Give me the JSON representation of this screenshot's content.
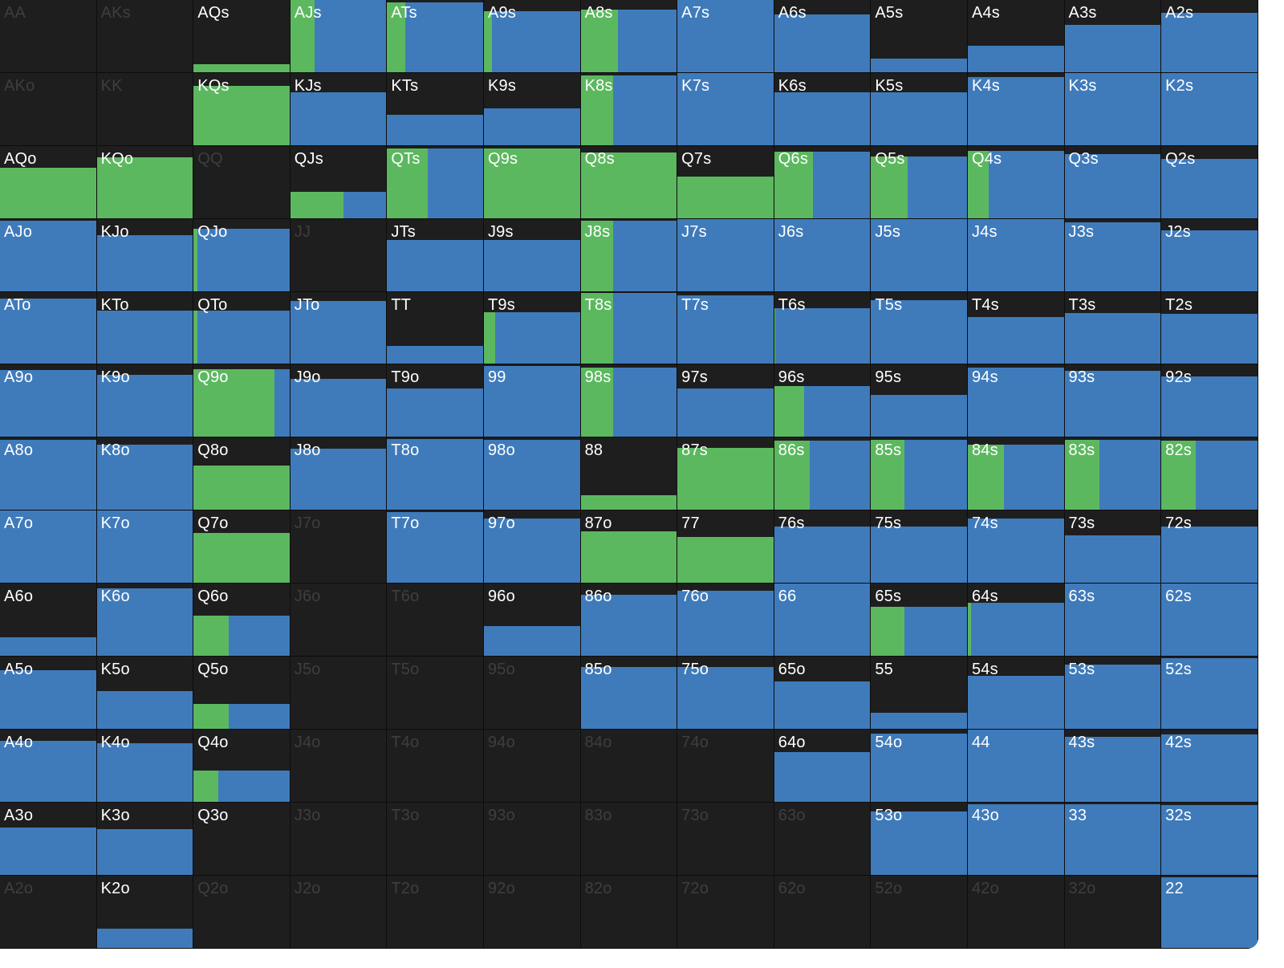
{
  "legend": {
    "colors": {
      "raise": "#5cb85f",
      "call": "#3f7bbb",
      "fold": "#1e1e1e"
    }
  },
  "grid": [
    [
      {
        "hand": "AA",
        "total": 0,
        "raise": 0,
        "dim": true
      },
      {
        "hand": "AKs",
        "total": 0,
        "raise": 0,
        "dim": true
      },
      {
        "hand": "AQs",
        "total": 0.12,
        "raise": 1
      },
      {
        "hand": "AJs",
        "total": 1,
        "raise": 0.25
      },
      {
        "hand": "ATs",
        "total": 0.97,
        "raise": 0.19
      },
      {
        "hand": "A9s",
        "total": 0.85,
        "raise": 0.08
      },
      {
        "hand": "A8s",
        "total": 0.87,
        "raise": 0.39
      },
      {
        "hand": "A7s",
        "total": 1,
        "raise": 0
      },
      {
        "hand": "A6s",
        "total": 0.8,
        "raise": 0
      },
      {
        "hand": "A5s",
        "total": 0.2,
        "raise": 0
      },
      {
        "hand": "A4s",
        "total": 0.37,
        "raise": 0
      },
      {
        "hand": "A3s",
        "total": 0.66,
        "raise": 0
      },
      {
        "hand": "A2s",
        "total": 0.82,
        "raise": 0
      }
    ],
    [
      {
        "hand": "AKo",
        "total": 0,
        "raise": 0,
        "dim": true
      },
      {
        "hand": "KK",
        "total": 0,
        "raise": 0,
        "dim": true
      },
      {
        "hand": "KQs",
        "total": 0.82,
        "raise": 1
      },
      {
        "hand": "KJs",
        "total": 0.74,
        "raise": 0
      },
      {
        "hand": "KTs",
        "total": 0.43,
        "raise": 0
      },
      {
        "hand": "K9s",
        "total": 0.52,
        "raise": 0
      },
      {
        "hand": "K8s",
        "total": 0.97,
        "raise": 0.34
      },
      {
        "hand": "K7s",
        "total": 1,
        "raise": 0
      },
      {
        "hand": "K6s",
        "total": 0.74,
        "raise": 0
      },
      {
        "hand": "K5s",
        "total": 0.74,
        "raise": 0
      },
      {
        "hand": "K4s",
        "total": 0.94,
        "raise": 0
      },
      {
        "hand": "K3s",
        "total": 1,
        "raise": 0
      },
      {
        "hand": "K2s",
        "total": 1,
        "raise": 0
      }
    ],
    [
      {
        "hand": "AQo",
        "total": 0.7,
        "raise": 1
      },
      {
        "hand": "KQo",
        "total": 0.84,
        "raise": 1
      },
      {
        "hand": "QQ",
        "total": 0,
        "raise": 0,
        "dim": true
      },
      {
        "hand": "QJs",
        "total": 0.37,
        "raise": 0.55
      },
      {
        "hand": "QTs",
        "total": 0.97,
        "raise": 0.42
      },
      {
        "hand": "Q9s",
        "total": 0.96,
        "raise": 1
      },
      {
        "hand": "Q8s",
        "total": 0.91,
        "raise": 1
      },
      {
        "hand": "Q7s",
        "total": 0.58,
        "raise": 1
      },
      {
        "hand": "Q6s",
        "total": 0.92,
        "raise": 0.4
      },
      {
        "hand": "Q5s",
        "total": 0.86,
        "raise": 0.38
      },
      {
        "hand": "Q4s",
        "total": 0.93,
        "raise": 0.22
      },
      {
        "hand": "Q3s",
        "total": 0.89,
        "raise": 0
      },
      {
        "hand": "Q2s",
        "total": 0.82,
        "raise": 0
      }
    ],
    [
      {
        "hand": "AJo",
        "total": 0.97,
        "raise": 0
      },
      {
        "hand": "KJo",
        "total": 0.78,
        "raise": 0
      },
      {
        "hand": "QJo",
        "total": 0.86,
        "raise": 0.04
      },
      {
        "hand": "JJ",
        "total": 0,
        "raise": 0,
        "dim": true
      },
      {
        "hand": "JTs",
        "total": 0.71,
        "raise": 0
      },
      {
        "hand": "J9s",
        "total": 0.71,
        "raise": 0
      },
      {
        "hand": "J8s",
        "total": 0.98,
        "raise": 0.34
      },
      {
        "hand": "J7s",
        "total": 1,
        "raise": 0
      },
      {
        "hand": "J6s",
        "total": 1,
        "raise": 0
      },
      {
        "hand": "J5s",
        "total": 1,
        "raise": 0
      },
      {
        "hand": "J4s",
        "total": 1,
        "raise": 0
      },
      {
        "hand": "J3s",
        "total": 0.95,
        "raise": 0
      },
      {
        "hand": "J2s",
        "total": 0.84,
        "raise": 0
      }
    ],
    [
      {
        "hand": "ATo",
        "total": 0.91,
        "raise": 0
      },
      {
        "hand": "KTo",
        "total": 0.74,
        "raise": 0
      },
      {
        "hand": "QTo",
        "total": 0.74,
        "raise": 0.04
      },
      {
        "hand": "JTo",
        "total": 0.87,
        "raise": 0
      },
      {
        "hand": "TT",
        "total": 0.26,
        "raise": 0
      },
      {
        "hand": "T9s",
        "total": 0.72,
        "raise": 0.12
      },
      {
        "hand": "T8s",
        "total": 0.98,
        "raise": 0.34
      },
      {
        "hand": "T7s",
        "total": 0.95,
        "raise": 0
      },
      {
        "hand": "T6s",
        "total": 0.78,
        "raise": 0.01
      },
      {
        "hand": "T5s",
        "total": 0.89,
        "raise": 0
      },
      {
        "hand": "T4s",
        "total": 0.65,
        "raise": 0
      },
      {
        "hand": "T3s",
        "total": 0.71,
        "raise": 0
      },
      {
        "hand": "T2s",
        "total": 0.7,
        "raise": 0
      }
    ],
    [
      {
        "hand": "A9o",
        "total": 0.93,
        "raise": 0
      },
      {
        "hand": "K9o",
        "total": 0.86,
        "raise": 0
      },
      {
        "hand": "Q9o",
        "total": 0.94,
        "raise": 0.84
      },
      {
        "hand": "J9o",
        "total": 0.81,
        "raise": 0
      },
      {
        "hand": "T9o",
        "total": 0.68,
        "raise": 0
      },
      {
        "hand": "99",
        "total": 0.98,
        "raise": 0
      },
      {
        "hand": "98s",
        "total": 0.96,
        "raise": 0.34
      },
      {
        "hand": "97s",
        "total": 0.68,
        "raise": 0
      },
      {
        "hand": "96s",
        "total": 0.71,
        "raise": 0.31
      },
      {
        "hand": "95s",
        "total": 0.59,
        "raise": 0
      },
      {
        "hand": "94s",
        "total": 0.96,
        "raise": 0
      },
      {
        "hand": "93s",
        "total": 0.92,
        "raise": 0
      },
      {
        "hand": "92s",
        "total": 0.84,
        "raise": 0
      }
    ],
    [
      {
        "hand": "A8o",
        "total": 0.97,
        "raise": 0
      },
      {
        "hand": "K8o",
        "total": 0.91,
        "raise": 0
      },
      {
        "hand": "Q8o",
        "total": 0.62,
        "raise": 1
      },
      {
        "hand": "J8o",
        "total": 0.85,
        "raise": 0
      },
      {
        "hand": "T8o",
        "total": 0.98,
        "raise": 0
      },
      {
        "hand": "98o",
        "total": 0.97,
        "raise": 0
      },
      {
        "hand": "88",
        "total": 0.21,
        "raise": 1
      },
      {
        "hand": "87s",
        "total": 0.86,
        "raise": 1
      },
      {
        "hand": "86s",
        "total": 0.96,
        "raise": 0.37
      },
      {
        "hand": "85s",
        "total": 0.97,
        "raise": 0.35
      },
      {
        "hand": "84s",
        "total": 0.91,
        "raise": 0.38
      },
      {
        "hand": "83s",
        "total": 0.97,
        "raise": 0.36
      },
      {
        "hand": "82s",
        "total": 0.96,
        "raise": 0.36
      }
    ],
    [
      {
        "hand": "A7o",
        "total": 1,
        "raise": 0
      },
      {
        "hand": "K7o",
        "total": 1,
        "raise": 0
      },
      {
        "hand": "Q7o",
        "total": 0.7,
        "raise": 1
      },
      {
        "hand": "J7o",
        "total": 0,
        "raise": 0,
        "dim": true
      },
      {
        "hand": "T7o",
        "total": 0.98,
        "raise": 0
      },
      {
        "hand": "97o",
        "total": 0.89,
        "raise": 0
      },
      {
        "hand": "87o",
        "total": 0.72,
        "raise": 1
      },
      {
        "hand": "77",
        "total": 0.64,
        "raise": 1
      },
      {
        "hand": "76s",
        "total": 0.78,
        "raise": 0
      },
      {
        "hand": "75s",
        "total": 0.78,
        "raise": 0
      },
      {
        "hand": "74s",
        "total": 0.89,
        "raise": 0
      },
      {
        "hand": "73s",
        "total": 0.66,
        "raise": 0
      },
      {
        "hand": "72s",
        "total": 0.78,
        "raise": 0
      }
    ],
    [
      {
        "hand": "A6o",
        "total": 0.26,
        "raise": 0
      },
      {
        "hand": "K6o",
        "total": 0.94,
        "raise": 0
      },
      {
        "hand": "Q6o",
        "total": 0.56,
        "raise": 0.37
      },
      {
        "hand": "J6o",
        "total": 0,
        "raise": 0,
        "dim": true
      },
      {
        "hand": "T6o",
        "total": 0,
        "raise": 0,
        "dim": true
      },
      {
        "hand": "96o",
        "total": 0.42,
        "raise": 0
      },
      {
        "hand": "86o",
        "total": 0.85,
        "raise": 0
      },
      {
        "hand": "76o",
        "total": 0.9,
        "raise": 0
      },
      {
        "hand": "66",
        "total": 1,
        "raise": 0
      },
      {
        "hand": "65s",
        "total": 0.68,
        "raise": 0.35
      },
      {
        "hand": "64s",
        "total": 0.74,
        "raise": 0.03
      },
      {
        "hand": "63s",
        "total": 1,
        "raise": 0
      },
      {
        "hand": "62s",
        "total": 1,
        "raise": 0
      }
    ],
    [
      {
        "hand": "A5o",
        "total": 0.81,
        "raise": 0
      },
      {
        "hand": "K5o",
        "total": 0.53,
        "raise": 0
      },
      {
        "hand": "Q5o",
        "total": 0.35,
        "raise": 0.37
      },
      {
        "hand": "J5o",
        "total": 0,
        "raise": 0,
        "dim": true
      },
      {
        "hand": "T5o",
        "total": 0,
        "raise": 0,
        "dim": true
      },
      {
        "hand": "95o",
        "total": 0,
        "raise": 0,
        "dim": true
      },
      {
        "hand": "85o",
        "total": 0.86,
        "raise": 0
      },
      {
        "hand": "75o",
        "total": 0.86,
        "raise": 0
      },
      {
        "hand": "65o",
        "total": 0.66,
        "raise": 0
      },
      {
        "hand": "55",
        "total": 0.23,
        "raise": 0
      },
      {
        "hand": "54s",
        "total": 0.74,
        "raise": 0
      },
      {
        "hand": "53s",
        "total": 0.89,
        "raise": 0
      },
      {
        "hand": "52s",
        "total": 0.98,
        "raise": 0
      }
    ],
    [
      {
        "hand": "A4o",
        "total": 0.84,
        "raise": 0
      },
      {
        "hand": "K4o",
        "total": 0.81,
        "raise": 0
      },
      {
        "hand": "Q4o",
        "total": 0.44,
        "raise": 0.26
      },
      {
        "hand": "J4o",
        "total": 0,
        "raise": 0,
        "dim": true
      },
      {
        "hand": "T4o",
        "total": 0,
        "raise": 0,
        "dim": true
      },
      {
        "hand": "94o",
        "total": 0,
        "raise": 0,
        "dim": true
      },
      {
        "hand": "84o",
        "total": 0,
        "raise": 0,
        "dim": true
      },
      {
        "hand": "74o",
        "total": 0,
        "raise": 0,
        "dim": true
      },
      {
        "hand": "64o",
        "total": 0.69,
        "raise": 0
      },
      {
        "hand": "54o",
        "total": 0.94,
        "raise": 0
      },
      {
        "hand": "44",
        "total": 1,
        "raise": 0
      },
      {
        "hand": "43s",
        "total": 0.9,
        "raise": 0
      },
      {
        "hand": "42s",
        "total": 0.93,
        "raise": 0
      }
    ],
    [
      {
        "hand": "A3o",
        "total": 0.66,
        "raise": 0
      },
      {
        "hand": "K3o",
        "total": 0.63,
        "raise": 0
      },
      {
        "hand": "Q3o",
        "total": 0,
        "raise": 0
      },
      {
        "hand": "J3o",
        "total": 0,
        "raise": 0,
        "dim": true
      },
      {
        "hand": "T3o",
        "total": 0,
        "raise": 0,
        "dim": true
      },
      {
        "hand": "93o",
        "total": 0,
        "raise": 0,
        "dim": true
      },
      {
        "hand": "83o",
        "total": 0,
        "raise": 0,
        "dim": true
      },
      {
        "hand": "73o",
        "total": 0,
        "raise": 0,
        "dim": true
      },
      {
        "hand": "63o",
        "total": 0,
        "raise": 0,
        "dim": true
      },
      {
        "hand": "53o",
        "total": 0.88,
        "raise": 0
      },
      {
        "hand": "43o",
        "total": 0.98,
        "raise": 0
      },
      {
        "hand": "33",
        "total": 0.98,
        "raise": 0
      },
      {
        "hand": "32s",
        "total": 0.96,
        "raise": 0
      }
    ],
    [
      {
        "hand": "A2o",
        "total": 0,
        "raise": 0,
        "dim": true
      },
      {
        "hand": "K2o",
        "total": 0.27,
        "raise": 0
      },
      {
        "hand": "Q2o",
        "total": 0,
        "raise": 0,
        "dim": true
      },
      {
        "hand": "J2o",
        "total": 0,
        "raise": 0,
        "dim": true
      },
      {
        "hand": "T2o",
        "total": 0,
        "raise": 0,
        "dim": true
      },
      {
        "hand": "92o",
        "total": 0,
        "raise": 0,
        "dim": true
      },
      {
        "hand": "82o",
        "total": 0,
        "raise": 0,
        "dim": true
      },
      {
        "hand": "72o",
        "total": 0,
        "raise": 0,
        "dim": true
      },
      {
        "hand": "62o",
        "total": 0,
        "raise": 0,
        "dim": true
      },
      {
        "hand": "52o",
        "total": 0,
        "raise": 0,
        "dim": true
      },
      {
        "hand": "42o",
        "total": 0,
        "raise": 0,
        "dim": true
      },
      {
        "hand": "32o",
        "total": 0,
        "raise": 0,
        "dim": true
      },
      {
        "hand": "22",
        "total": 0.98,
        "raise": 0
      }
    ]
  ]
}
